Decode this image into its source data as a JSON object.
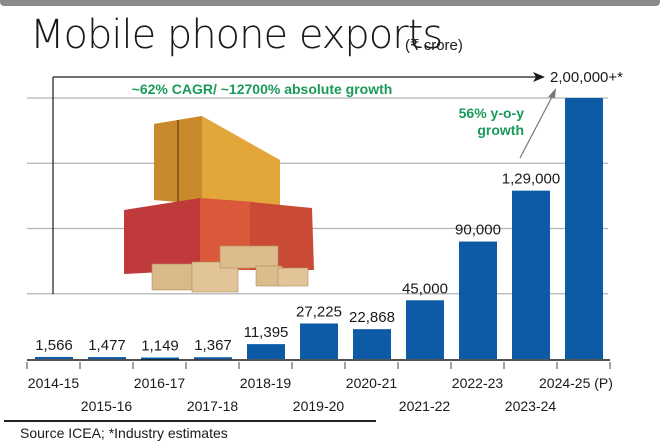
{
  "title": "Mobile phone exports",
  "unit": "(₹ crore)",
  "source": "Source ICEA;  *Industry estimates",
  "colors": {
    "bar": "#0d5aa7",
    "annotation": "#1a9a5a",
    "grid": "#b3b3b3",
    "axis": "#1a1a1a"
  },
  "annotations": {
    "cagr": "~62% CAGR/ ~12700% absolute growth",
    "yoy_line1": "56% y-o-y",
    "yoy_line2": "growth",
    "target": "2,00,000+*"
  },
  "illustration": "shipping-containers-with-cardboard-boxes",
  "chart_data": {
    "type": "bar",
    "title": "Mobile phone exports (₹ crore)",
    "xlabel": "",
    "ylabel": "",
    "ylim": [
      0,
      200000
    ],
    "grid": true,
    "gridlines": [
      50000,
      100000,
      150000,
      200000
    ],
    "categories": [
      "2014-15",
      "2015-16",
      "2016-17",
      "2017-18",
      "2018-19",
      "2019-20",
      "2020-21",
      "2021-22",
      "2022-23",
      "2023-24",
      "2024-25 (P)"
    ],
    "values": [
      1566,
      1477,
      1149,
      1367,
      11395,
      27225,
      22868,
      45000,
      90000,
      129000,
      200000
    ],
    "value_labels": [
      "1,566",
      "1,477",
      "1,149",
      "1,367",
      "11,395",
      "27,225",
      "22,868",
      "45,000",
      "90,000",
      "1,29,000",
      "2,00,000+*"
    ]
  }
}
